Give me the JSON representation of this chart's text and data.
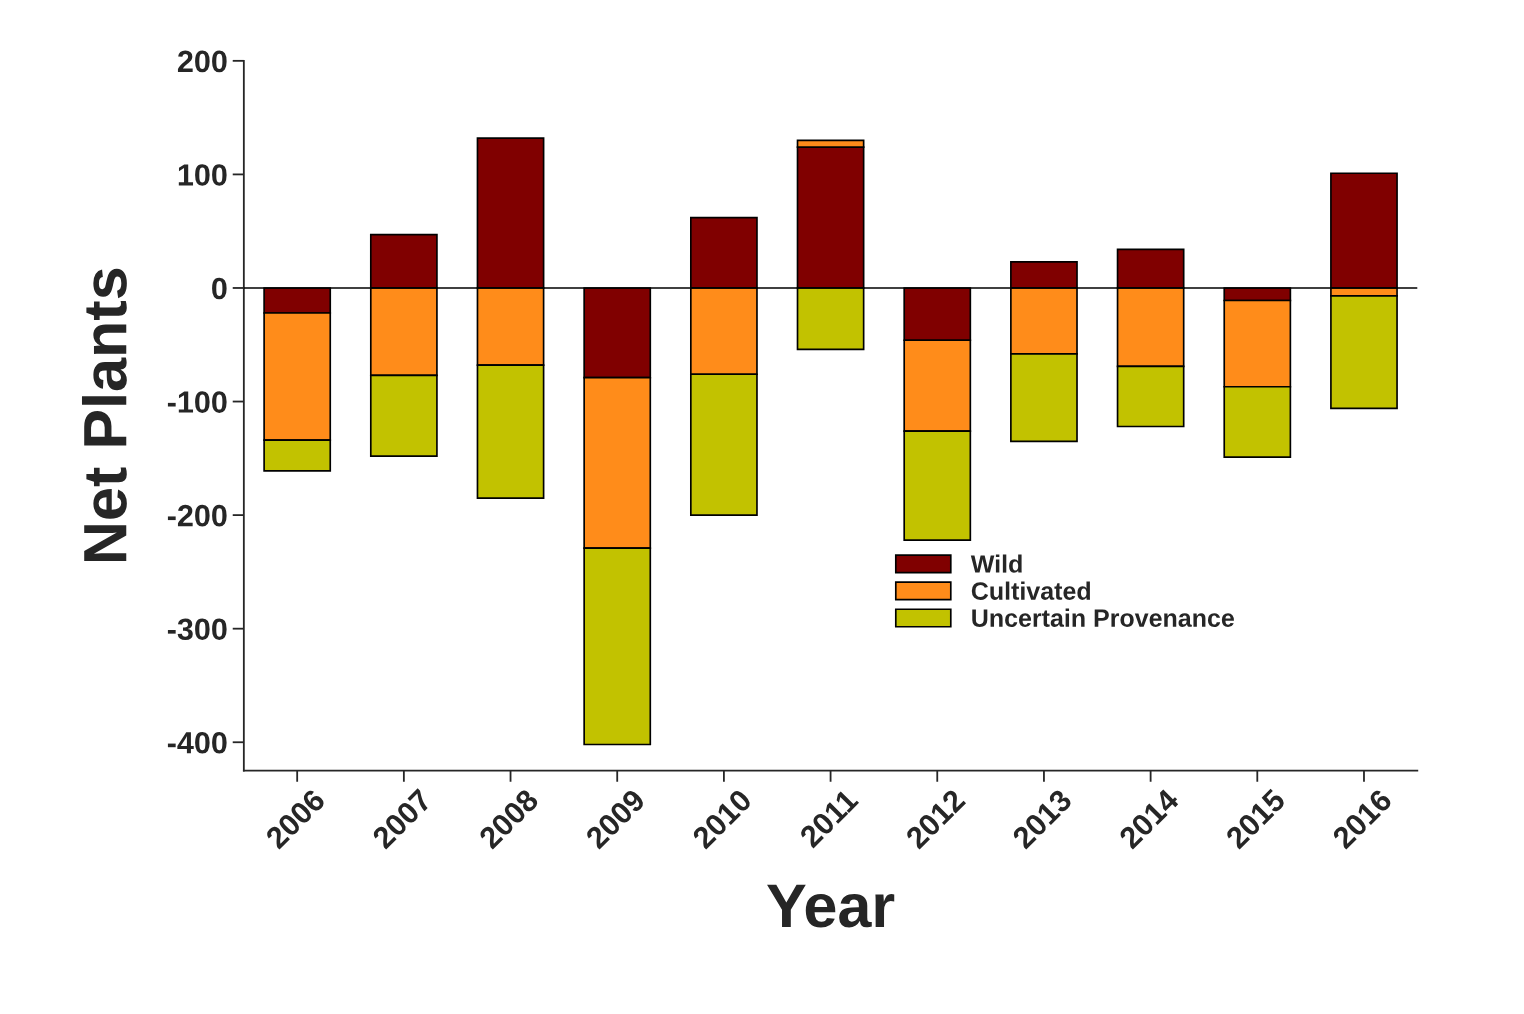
{
  "chart_data": {
    "type": "bar",
    "stacked": true,
    "xlabel": "Year",
    "ylabel": "Net Plants",
    "categories": [
      "2006",
      "2007",
      "2008",
      "2009",
      "2010",
      "2011",
      "2012",
      "2013",
      "2014",
      "2015",
      "2016"
    ],
    "series": [
      {
        "name": "Wild",
        "color": "#800000",
        "values": [
          -22,
          47,
          132,
          -79,
          62,
          124,
          -46,
          23,
          34,
          -11,
          101
        ]
      },
      {
        "name": "Cultivated",
        "color": "#ff8c1a",
        "values": [
          -112,
          -77,
          -68,
          -150,
          -76,
          6,
          -80,
          -58,
          -69,
          -76,
          -7
        ]
      },
      {
        "name": "Uncertain Provenance",
        "color": "#c2c200",
        "values": [
          -27,
          -71,
          -117,
          -173,
          -124,
          -54,
          -96,
          -77,
          -53,
          -62,
          -99
        ]
      }
    ],
    "ylim": [
      -425,
      200
    ],
    "yticks": [
      -400,
      -300,
      -200,
      -100,
      0,
      100,
      200
    ],
    "ref_lines": [
      {
        "axis": "y",
        "value": 0,
        "color": "#000000"
      }
    ],
    "legend": "bottom right",
    "grid": false
  }
}
